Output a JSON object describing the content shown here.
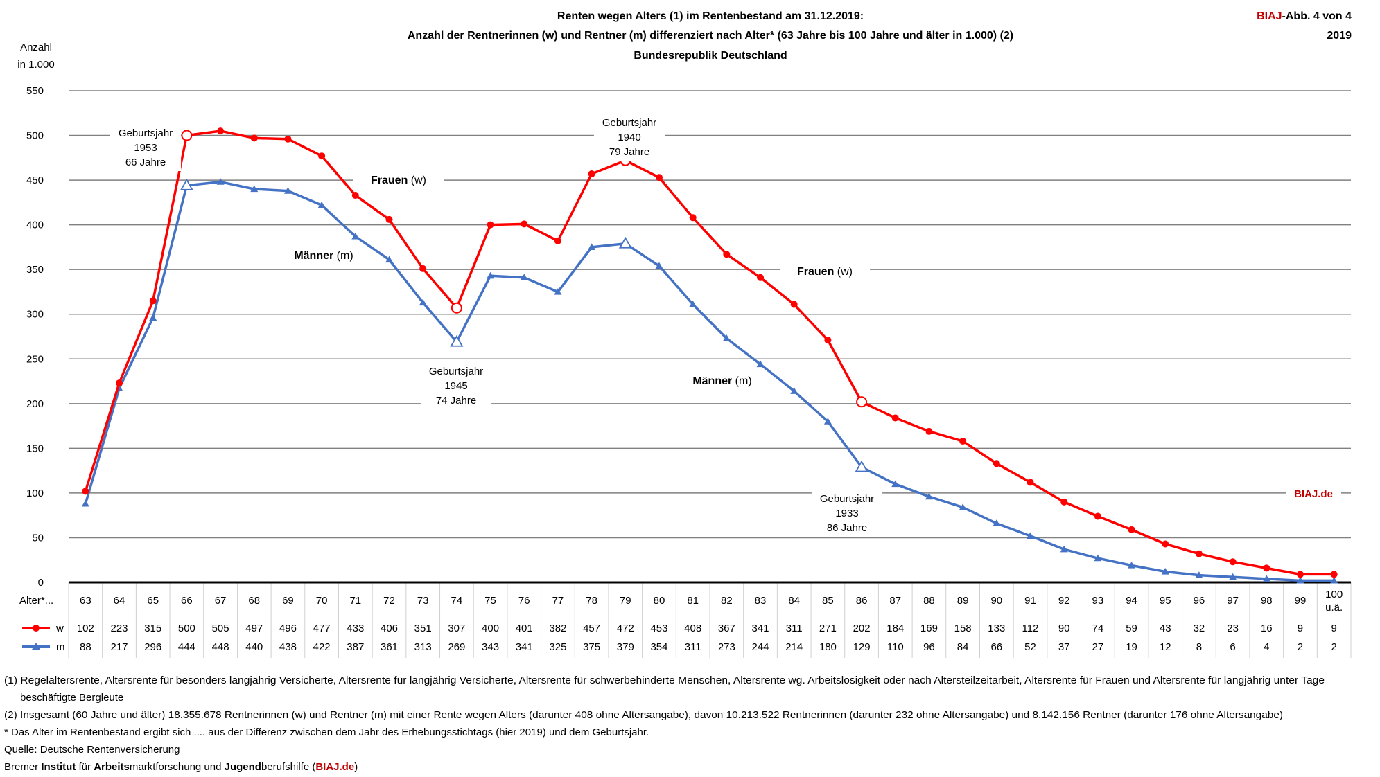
{
  "header": {
    "title_line1": "Renten wegen Alters (1) im Rentenbestand am 31.12.2019:",
    "title_line2": "Anzahl der Rentnerinnen (w) und Rentner (m)  differenziert nach Alter* (63 Jahre bis 100 Jahre und älter in 1.000)  (2)",
    "title_line3": "Bundesrepublik Deutschland",
    "badge_brand": "BIAJ",
    "badge_rest": "-Abb. 4 von 4",
    "badge_year": "2019"
  },
  "colors": {
    "w": "#ff0000",
    "m": "#4472c4",
    "brand": "#c00000",
    "grid": "#808080"
  },
  "chart_data": {
    "type": "line",
    "ylabel_line1": "Anzahl",
    "ylabel_line2": "in 1.000",
    "ylim": [
      0,
      550
    ],
    "yticks": [
      0,
      50,
      100,
      150,
      200,
      250,
      300,
      350,
      400,
      450,
      500,
      550
    ],
    "grid": true,
    "table_header": "Alter*...",
    "categories": [
      "63",
      "64",
      "65",
      "66",
      "67",
      "68",
      "69",
      "70",
      "71",
      "72",
      "73",
      "74",
      "75",
      "76",
      "77",
      "78",
      "79",
      "80",
      "81",
      "82",
      "83",
      "84",
      "85",
      "86",
      "87",
      "88",
      "89",
      "90",
      "91",
      "92",
      "93",
      "94",
      "95",
      "96",
      "97",
      "98",
      "99",
      "100 u.ä."
    ],
    "series": [
      {
        "name": "w",
        "color": "#ff0000",
        "marker": "circle",
        "values": [
          102,
          223,
          315,
          500,
          505,
          497,
          496,
          477,
          433,
          406,
          351,
          307,
          400,
          401,
          382,
          457,
          472,
          453,
          408,
          367,
          341,
          311,
          271,
          202,
          184,
          169,
          158,
          133,
          112,
          90,
          74,
          59,
          43,
          32,
          23,
          16,
          9,
          9
        ]
      },
      {
        "name": "m",
        "color": "#4472c4",
        "marker": "triangle",
        "values": [
          88,
          217,
          296,
          444,
          448,
          440,
          438,
          422,
          387,
          361,
          313,
          269,
          343,
          341,
          325,
          375,
          379,
          354,
          311,
          273,
          244,
          214,
          180,
          129,
          110,
          96,
          84,
          66,
          52,
          37,
          27,
          19,
          12,
          8,
          6,
          4,
          2,
          2
        ]
      }
    ],
    "highlighted_categories": [
      "66",
      "74",
      "79",
      "86"
    ],
    "annotations": [
      {
        "lines": [
          "Geburtsjahr",
          "1953",
          "66 Jahre"
        ],
        "category": "66"
      },
      {
        "lines": [
          "Geburtsjahr",
          "1940",
          "79 Jahre"
        ],
        "category": "79"
      },
      {
        "lines": [
          "Geburtsjahr",
          "1945",
          "74 Jahre"
        ],
        "category": "74"
      },
      {
        "lines": [
          "Geburtsjahr",
          "1933",
          "86 Jahre"
        ],
        "category": "86"
      }
    ],
    "series_labels": [
      {
        "bold": "Frauen",
        "rest": " (w)"
      },
      {
        "bold": "Frauen",
        "rest": " (w)"
      },
      {
        "bold": "Männer",
        "rest": " (m)"
      },
      {
        "bold": "Männer",
        "rest": " (m)"
      }
    ],
    "watermark": "BIAJ.de"
  },
  "footnotes": {
    "note1_line1": "(1) Regelaltersrente, Altersrente für besonders langjährig Versicherte, Altersrente für langjährig Versicherte, Altersrente für schwerbehinderte Menschen, Altersrente wg. Arbeitslosigkeit oder nach Altersteilzeitarbeit, Altersrente für Frauen und  Altersrente für langjährig unter Tage",
    "note1_line2": "beschäftigte Bergleute",
    "note2": "(2)  Insgesamt (60 Jahre und älter) 18.355.678 Rentnerinnen (w) und Rentner (m)  mit einer Rente wegen Alters (darunter 408 ohne Altersangabe), davon 10.213.522 Rentnerinnen (darunter 232 ohne Altersangabe) und 8.142.156 Rentner (darunter 176 ohne Altersangabe)",
    "note3": "* Das Alter im Rentenbestand ergibt sich .... aus der Differenz zwischen dem Jahr des Erhebungsstichtags (hier 2019) und dem Geburtsjahr.",
    "source": "Quelle: Deutsche Rentenversicherung",
    "org_parts": [
      {
        "text": "Bremer ",
        "bold": false
      },
      {
        "text": "Institut",
        "bold": true
      },
      {
        "text": " für ",
        "bold": false
      },
      {
        "text": "Arbeits",
        "bold": true
      },
      {
        "text": "marktforschung und ",
        "bold": false
      },
      {
        "text": "Jugend",
        "bold": true
      },
      {
        "text": "berufshilfe (",
        "bold": false
      },
      {
        "text": "BIAJ.de",
        "bold": true,
        "brand": true
      },
      {
        "text": ")",
        "bold": false
      }
    ]
  }
}
